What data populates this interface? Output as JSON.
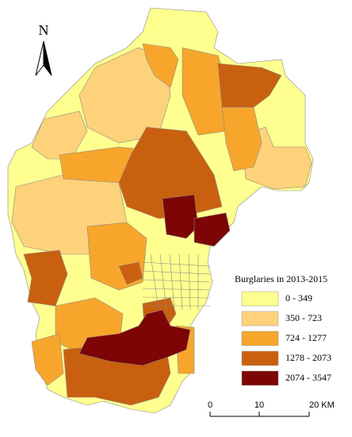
{
  "north": "N",
  "legend": {
    "title": "Burglaries in 2013-2015",
    "items": [
      {
        "label": "0  -  349",
        "color": "#ffff8f"
      },
      {
        "label": "350  -  723",
        "color": "#fdd27a"
      },
      {
        "label": "724  -  1277",
        "color": "#f7a62b"
      },
      {
        "label": "1278  -  2073",
        "color": "#c9600f"
      },
      {
        "label": "2074  -  3547",
        "color": "#7d0505"
      }
    ]
  },
  "scale_bar": {
    "labels": [
      "0",
      "10",
      "20 KM"
    ]
  }
}
